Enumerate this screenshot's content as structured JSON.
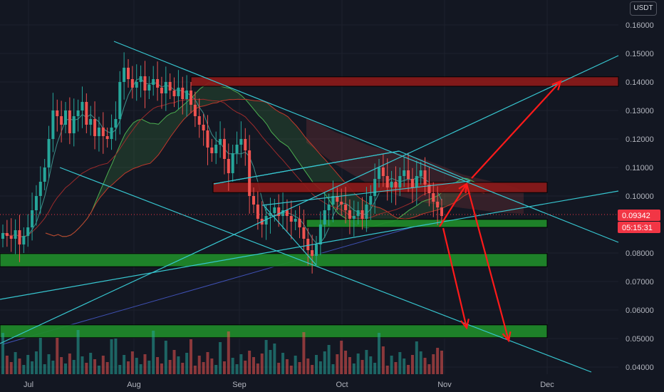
{
  "currency": "USDT",
  "current_price": "0.09342",
  "countdown": "05:15:31",
  "colors": {
    "background": "#131722",
    "up_candle": "#26a69a",
    "down_candle": "#ef5350",
    "resistance_zone": "#8b1a1a",
    "support_zone": "#1f8a2a",
    "trendline": "#37c6d0",
    "arrow": "#ff1a1a",
    "price_badge": "#f23645"
  },
  "chart_data": {
    "type": "candlestick",
    "y_axis": {
      "ticks": [
        "0.16000",
        "0.15000",
        "0.14000",
        "0.13000",
        "0.12000",
        "0.11000",
        "0.10000",
        "0.08000",
        "0.07000",
        "0.06000",
        "0.05000",
        "0.04000"
      ],
      "range": [
        0.0375,
        0.1625
      ]
    },
    "x_axis": {
      "labels": [
        "Jul",
        "Aug",
        "Sep",
        "Oct",
        "Nov",
        "Dec"
      ]
    },
    "price_series": [
      0.087,
      0.086,
      0.085,
      0.088,
      0.083,
      0.086,
      0.089,
      0.095,
      0.1,
      0.105,
      0.11,
      0.12,
      0.13,
      0.128,
      0.125,
      0.13,
      0.122,
      0.128,
      0.13,
      0.133,
      0.125,
      0.127,
      0.121,
      0.124,
      0.121,
      0.12,
      0.124,
      0.127,
      0.14,
      0.145,
      0.141,
      0.138,
      0.14,
      0.142,
      0.137,
      0.139,
      0.141,
      0.138,
      0.136,
      0.14,
      0.137,
      0.135,
      0.138,
      0.134,
      0.137,
      0.132,
      0.128,
      0.125,
      0.123,
      0.117,
      0.115,
      0.118,
      0.12,
      0.113,
      0.108,
      0.115,
      0.118,
      0.12,
      0.116,
      0.1,
      0.097,
      0.092,
      0.09,
      0.093,
      0.094,
      0.096,
      0.093,
      0.095,
      0.093,
      0.091,
      0.092,
      0.089,
      0.085,
      0.081,
      0.079,
      0.083,
      0.09,
      0.095,
      0.097,
      0.1,
      0.098,
      0.097,
      0.095,
      0.092,
      0.093,
      0.095,
      0.092,
      0.097,
      0.1,
      0.106,
      0.11,
      0.107,
      0.103,
      0.105,
      0.103,
      0.107,
      0.109,
      0.106,
      0.103,
      0.107,
      0.109,
      0.104,
      0.101,
      0.098,
      0.096,
      0.093
    ],
    "zones": [
      {
        "kind": "resistance",
        "low": 0.1385,
        "high": 0.1418
      },
      {
        "kind": "resistance",
        "low": 0.1012,
        "high": 0.1048
      },
      {
        "kind": "support",
        "low": 0.089,
        "high": 0.0918
      },
      {
        "kind": "support",
        "low": 0.0752,
        "high": 0.0798
      },
      {
        "kind": "support",
        "low": 0.0503,
        "high": 0.0548
      }
    ]
  }
}
